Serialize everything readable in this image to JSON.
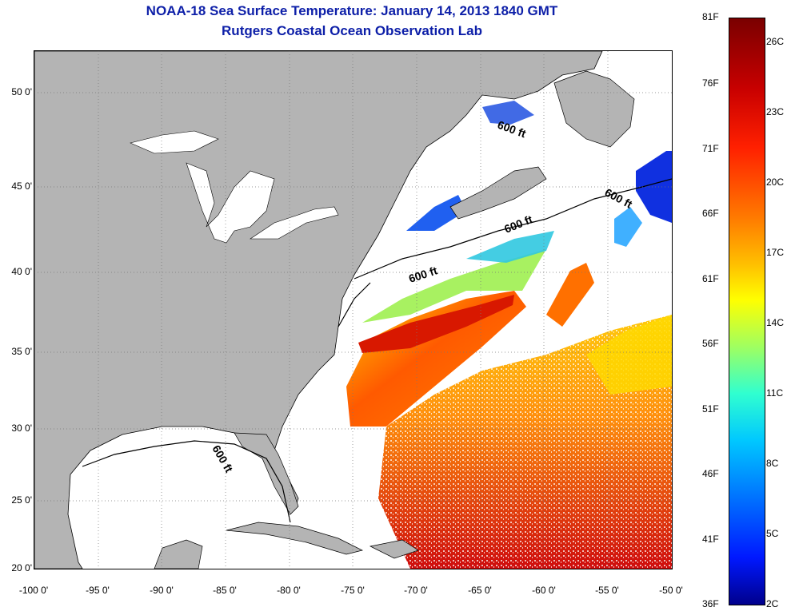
{
  "header": {
    "title_line1": "NOAA-18 Sea Surface Temperature:  January 14, 2013 1840 GMT",
    "title_line2": "Rutgers Coastal Ocean Observation Lab"
  },
  "map": {
    "lat_labels": [
      "50 0'",
      "45 0'",
      "40 0'",
      "35 0'",
      "30 0'",
      "25 0'",
      "20 0'"
    ],
    "lon_labels": [
      "-100 0'",
      "-95 0'",
      "-90 0'",
      "-85 0'",
      "-80 0'",
      "-75 0'",
      "-70 0'",
      "-65 0'",
      "-60 0'",
      "-55 0'",
      "-50 0'"
    ],
    "lon_range": [
      -100,
      -50
    ],
    "lat_range": [
      20,
      52.5
    ],
    "contour_labels": [
      "600 ft",
      "600 ft",
      "600 ft",
      "600 ft",
      "600 ft"
    ],
    "land_color": "#b4b4b4",
    "ocean_color": "#ffffff"
  },
  "colorbar": {
    "fahrenheit_labels": [
      "81F",
      "76F",
      "71F",
      "66F",
      "61F",
      "56F",
      "51F",
      "46F",
      "41F",
      "36F"
    ],
    "celsius_labels": [
      "26C",
      "23C",
      "20C",
      "17C",
      "14C",
      "11C",
      "8C",
      "5C",
      "2C"
    ],
    "range_f": [
      36,
      81
    ],
    "range_c": [
      2,
      27
    ]
  }
}
